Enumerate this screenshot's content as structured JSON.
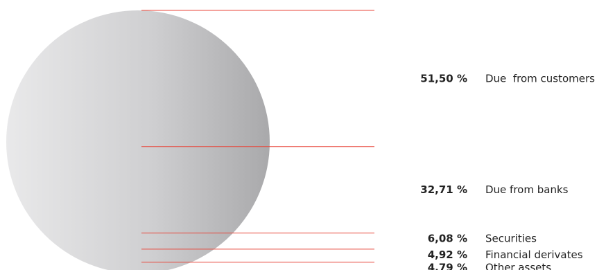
{
  "chart_data": {
    "type": "pie",
    "colors": {
      "line": "#e8463a",
      "sphere_light": "#e9e9ea",
      "sphere_dark": "#a9a9ab",
      "text": "#222222"
    },
    "slices": [
      {
        "label": "Due  from customers",
        "value": 51.5,
        "value_label": "51,50 %"
      },
      {
        "label": "Due from banks",
        "value": 32.71,
        "value_label": "32,71 %"
      },
      {
        "label": "Securities",
        "value": 6.08,
        "value_label": "6,08 %"
      },
      {
        "label": "Financial derivates",
        "value": 4.92,
        "value_label": "4,92 %"
      },
      {
        "label": "Other assets",
        "value": 4.79,
        "value_label": "4,79 %"
      }
    ]
  }
}
